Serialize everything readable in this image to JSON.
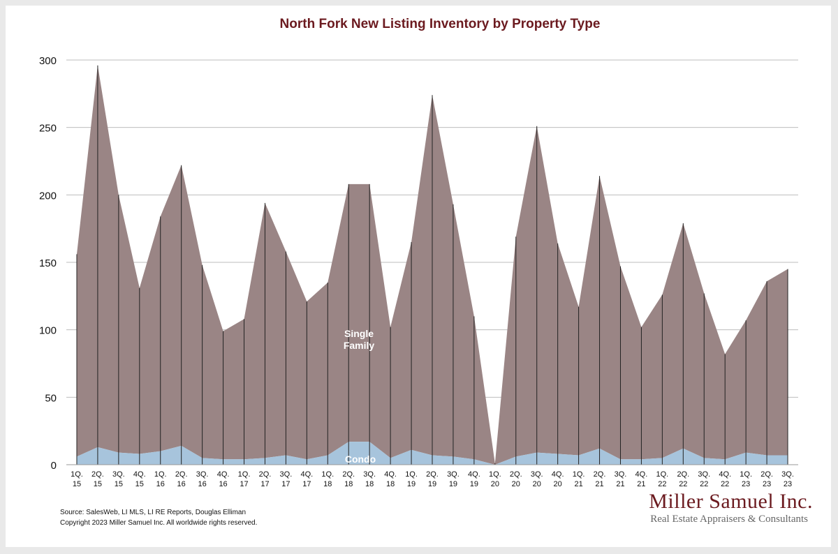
{
  "chart_data": {
    "type": "area",
    "title": "North Fork New Listing Inventory by Property Type",
    "stacked": true,
    "categories": [
      "1Q.\n15",
      "2Q.\n15",
      "3Q.\n15",
      "4Q.\n15",
      "1Q.\n16",
      "2Q.\n16",
      "3Q.\n16",
      "4Q.\n16",
      "1Q.\n17",
      "2Q.\n17",
      "3Q.\n17",
      "4Q.\n17",
      "1Q.\n18",
      "2Q.\n18",
      "3Q.\n18",
      "4Q.\n18",
      "1Q.\n19",
      "2Q.\n19",
      "3Q.\n19",
      "4Q.\n19",
      "1Q.\n20",
      "2Q.\n20",
      "3Q.\n20",
      "4Q.\n20",
      "1Q.\n21",
      "2Q.\n21",
      "3Q.\n21",
      "4Q.\n21",
      "1Q.\n22",
      "2Q.\n22",
      "3Q.\n22",
      "4Q.\n22",
      "1Q.\n23",
      "2Q.\n23",
      "3Q.\n23"
    ],
    "series": [
      {
        "name": "Condo",
        "color": "#a7c4dc",
        "values": [
          6,
          13,
          9,
          8,
          10,
          14,
          5,
          4,
          4,
          5,
          7,
          4,
          7,
          17,
          17,
          5,
          11,
          7,
          6,
          4,
          0,
          6,
          9,
          8,
          7,
          12,
          4,
          4,
          5,
          12,
          5,
          4,
          9,
          7,
          7
        ]
      },
      {
        "name": "Single Family",
        "color": "#9a8585",
        "values": [
          150,
          283,
          191,
          123,
          174,
          208,
          143,
          95,
          104,
          189,
          151,
          117,
          128,
          191,
          191,
          97,
          154,
          267,
          187,
          106,
          1,
          163,
          242,
          156,
          110,
          202,
          143,
          98,
          121,
          167,
          122,
          78,
          98,
          129,
          138
        ]
      }
    ],
    "series_labels": [
      {
        "series": "Single Family",
        "lines": [
          "Single",
          "Family"
        ]
      },
      {
        "series": "Condo",
        "lines": [
          "Condo"
        ]
      }
    ],
    "ylim": [
      0,
      300
    ],
    "yticks": [
      0,
      50,
      100,
      150,
      200,
      250,
      300
    ],
    "grid": true,
    "drop_lines": true
  },
  "footer": {
    "source": "Source: SalesWeb, LI MLS, LI RE Reports, Douglas Elliman",
    "copyright": "Copyright 2023 Miller Samuel Inc.  All worldwide rights reserved."
  },
  "brand": {
    "name": "Miller Samuel Inc.",
    "tagline": "Real Estate Appraisers & Consultants"
  }
}
